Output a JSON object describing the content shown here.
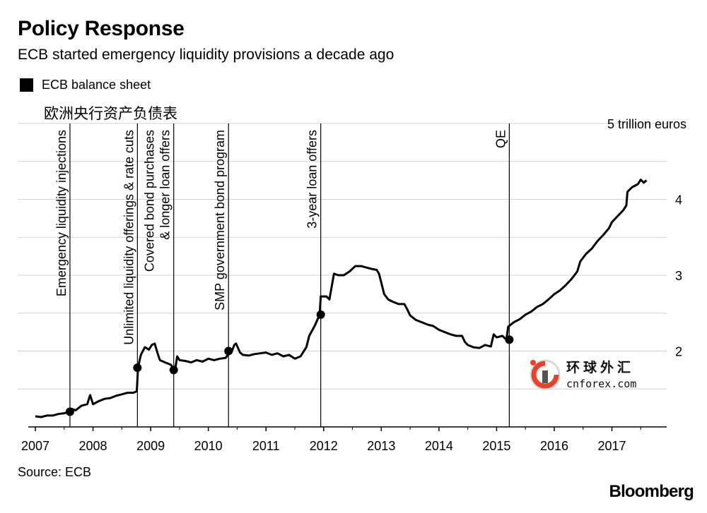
{
  "header": {
    "title": "Policy Response",
    "subtitle": "ECB started emergency liquidity provisions a decade ago"
  },
  "legend": {
    "label": "ECB balance sheet",
    "color": "#000000"
  },
  "overlay_caption": "欧洲央行资产负债表",
  "watermark": {
    "cn": "环球外汇",
    "en": "cnforex.com",
    "accent": "#e8432a"
  },
  "footer": {
    "source": "Source: ECB",
    "brand": "Bloomberg"
  },
  "chart_data": {
    "type": "line",
    "title": "Policy Response",
    "unit_label": "trillion euros",
    "top_tick_label": "5  trillion euros",
    "xlim": [
      2007,
      2017.95
    ],
    "ylim": [
      1.0,
      5.0
    ],
    "x_ticks": [
      2007,
      2008,
      2009,
      2010,
      2011,
      2012,
      2013,
      2014,
      2015,
      2016,
      2017
    ],
    "y_ticks": [
      2,
      3,
      4,
      5
    ],
    "grid_y": [
      1.5,
      2,
      2.5,
      3,
      3.5,
      4,
      4.5,
      5
    ],
    "series": [
      {
        "name": "ECB balance sheet",
        "points": [
          [
            2007.0,
            1.14
          ],
          [
            2007.1,
            1.13
          ],
          [
            2007.2,
            1.15
          ],
          [
            2007.3,
            1.15
          ],
          [
            2007.4,
            1.17
          ],
          [
            2007.5,
            1.18
          ],
          [
            2007.6,
            1.2
          ],
          [
            2007.62,
            1.24
          ],
          [
            2007.7,
            1.22
          ],
          [
            2007.8,
            1.28
          ],
          [
            2007.9,
            1.3
          ],
          [
            2007.95,
            1.42
          ],
          [
            2008.0,
            1.3
          ],
          [
            2008.1,
            1.34
          ],
          [
            2008.2,
            1.37
          ],
          [
            2008.3,
            1.38
          ],
          [
            2008.4,
            1.41
          ],
          [
            2008.5,
            1.43
          ],
          [
            2008.6,
            1.45
          ],
          [
            2008.7,
            1.45
          ],
          [
            2008.76,
            1.47
          ],
          [
            2008.78,
            1.78
          ],
          [
            2008.83,
            1.95
          ],
          [
            2008.9,
            2.05
          ],
          [
            2008.97,
            2.02
          ],
          [
            2009.02,
            2.08
          ],
          [
            2009.07,
            2.1
          ],
          [
            2009.12,
            1.97
          ],
          [
            2009.16,
            1.88
          ],
          [
            2009.25,
            1.85
          ],
          [
            2009.35,
            1.82
          ],
          [
            2009.39,
            1.78
          ],
          [
            2009.42,
            1.73
          ],
          [
            2009.46,
            1.93
          ],
          [
            2009.5,
            1.88
          ],
          [
            2009.6,
            1.87
          ],
          [
            2009.7,
            1.85
          ],
          [
            2009.8,
            1.88
          ],
          [
            2009.9,
            1.86
          ],
          [
            2010.0,
            1.9
          ],
          [
            2010.1,
            1.88
          ],
          [
            2010.2,
            1.9
          ],
          [
            2010.3,
            1.91
          ],
          [
            2010.35,
            1.96
          ],
          [
            2010.4,
            1.98
          ],
          [
            2010.45,
            2.08
          ],
          [
            2010.48,
            2.1
          ],
          [
            2010.55,
            1.98
          ],
          [
            2010.6,
            1.95
          ],
          [
            2010.7,
            1.94
          ],
          [
            2010.8,
            1.96
          ],
          [
            2010.9,
            1.97
          ],
          [
            2011.0,
            1.98
          ],
          [
            2011.1,
            1.95
          ],
          [
            2011.2,
            1.97
          ],
          [
            2011.3,
            1.93
          ],
          [
            2011.4,
            1.95
          ],
          [
            2011.5,
            1.9
          ],
          [
            2011.6,
            1.93
          ],
          [
            2011.7,
            2.05
          ],
          [
            2011.75,
            2.2
          ],
          [
            2011.85,
            2.34
          ],
          [
            2011.93,
            2.48
          ],
          [
            2011.95,
            2.72
          ],
          [
            2012.05,
            2.72
          ],
          [
            2012.1,
            2.68
          ],
          [
            2012.18,
            3.02
          ],
          [
            2012.25,
            3.0
          ],
          [
            2012.35,
            3.0
          ],
          [
            2012.45,
            3.05
          ],
          [
            2012.55,
            3.12
          ],
          [
            2012.65,
            3.12
          ],
          [
            2012.75,
            3.1
          ],
          [
            2012.85,
            3.08
          ],
          [
            2012.92,
            3.07
          ],
          [
            2012.96,
            3.02
          ],
          [
            2013.05,
            2.75
          ],
          [
            2013.12,
            2.68
          ],
          [
            2013.2,
            2.65
          ],
          [
            2013.3,
            2.62
          ],
          [
            2013.4,
            2.62
          ],
          [
            2013.45,
            2.55
          ],
          [
            2013.5,
            2.47
          ],
          [
            2013.6,
            2.41
          ],
          [
            2013.7,
            2.38
          ],
          [
            2013.8,
            2.35
          ],
          [
            2013.9,
            2.33
          ],
          [
            2014.0,
            2.28
          ],
          [
            2014.1,
            2.25
          ],
          [
            2014.2,
            2.22
          ],
          [
            2014.3,
            2.2
          ],
          [
            2014.4,
            2.2
          ],
          [
            2014.45,
            2.12
          ],
          [
            2014.5,
            2.08
          ],
          [
            2014.6,
            2.05
          ],
          [
            2014.7,
            2.04
          ],
          [
            2014.8,
            2.08
          ],
          [
            2014.9,
            2.06
          ],
          [
            2014.95,
            2.22
          ],
          [
            2015.0,
            2.18
          ],
          [
            2015.1,
            2.2
          ],
          [
            2015.17,
            2.15
          ],
          [
            2015.2,
            2.32
          ],
          [
            2015.3,
            2.38
          ],
          [
            2015.4,
            2.42
          ],
          [
            2015.5,
            2.48
          ],
          [
            2015.6,
            2.52
          ],
          [
            2015.7,
            2.58
          ],
          [
            2015.8,
            2.62
          ],
          [
            2015.9,
            2.68
          ],
          [
            2016.0,
            2.75
          ],
          [
            2016.1,
            2.8
          ],
          [
            2016.2,
            2.87
          ],
          [
            2016.3,
            2.95
          ],
          [
            2016.4,
            3.05
          ],
          [
            2016.45,
            3.18
          ],
          [
            2016.55,
            3.28
          ],
          [
            2016.65,
            3.35
          ],
          [
            2016.75,
            3.45
          ],
          [
            2016.85,
            3.53
          ],
          [
            2016.95,
            3.62
          ],
          [
            2017.0,
            3.7
          ],
          [
            2017.1,
            3.78
          ],
          [
            2017.2,
            3.86
          ],
          [
            2017.25,
            3.92
          ],
          [
            2017.27,
            4.1
          ],
          [
            2017.35,
            4.16
          ],
          [
            2017.45,
            4.2
          ],
          [
            2017.5,
            4.26
          ],
          [
            2017.55,
            4.22
          ],
          [
            2017.6,
            4.25
          ]
        ]
      }
    ],
    "events": [
      {
        "label": "Emergency liquidity injections",
        "x": 2007.6,
        "y": 1.2,
        "lines": [
          "Emergency liquidity injections"
        ]
      },
      {
        "label": "Unlimited liquidity offerings & rate cuts",
        "x": 2008.77,
        "y": 1.78,
        "lines": [
          "Unlimited liquidity offerings & rate cuts"
        ]
      },
      {
        "label": "Covered bond purchases & longer loan offers",
        "x": 2009.4,
        "y": 1.75,
        "lines": [
          "Covered bond purchases",
          "& longer loan offers"
        ]
      },
      {
        "label": "SMP government bond program",
        "x": 2010.35,
        "y": 2.0,
        "lines": [
          "SMP government bond program"
        ]
      },
      {
        "label": "3-year loan offers",
        "x": 2011.95,
        "y": 2.48,
        "lines": [
          "3-year loan offers"
        ]
      },
      {
        "label": "QE",
        "x": 2015.22,
        "y": 2.15,
        "lines": [
          "QE"
        ]
      }
    ]
  }
}
